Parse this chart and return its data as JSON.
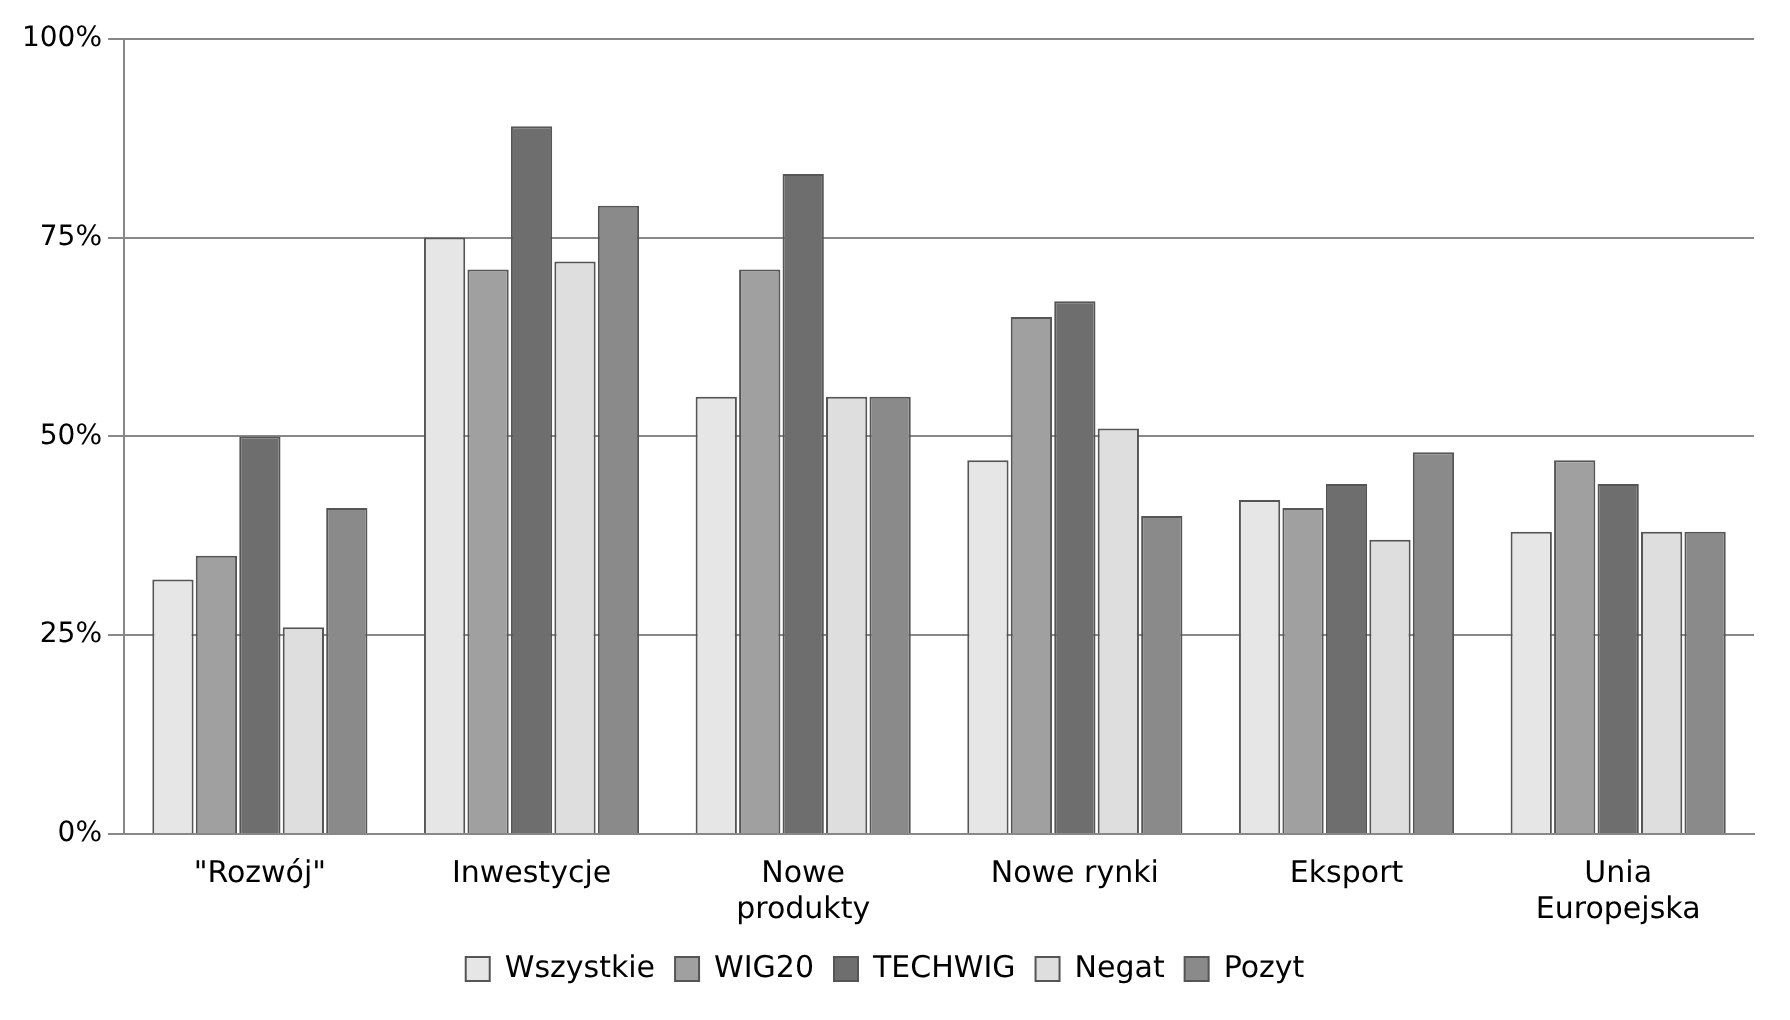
{
  "chart_data": {
    "type": "bar",
    "categories": [
      "\"Rozwój\"",
      "Inwestycje",
      "Nowe produkty",
      "Nowe rynki",
      "Eksport",
      "Unia Europejska"
    ],
    "series": [
      {
        "name": "Wszystkie",
        "color": "#e6e6e6",
        "values": [
          32,
          75,
          55,
          47,
          42,
          38
        ]
      },
      {
        "name": "WIG20",
        "color": "#a0a0a0",
        "values": [
          35,
          71,
          71,
          65,
          41,
          47
        ]
      },
      {
        "name": "TECHWIG",
        "color": "#6e6e6e",
        "values": [
          50,
          89,
          83,
          67,
          44,
          44
        ]
      },
      {
        "name": "Negat",
        "color": "#dedede",
        "values": [
          26,
          72,
          55,
          51,
          37,
          38
        ]
      },
      {
        "name": "Pozyt",
        "color": "#8a8a8a",
        "values": [
          41,
          79,
          55,
          40,
          48,
          38
        ]
      }
    ],
    "ylim": [
      0,
      100
    ],
    "yticks": [
      {
        "value": 0,
        "label": "0%"
      },
      {
        "value": 25,
        "label": "25%"
      },
      {
        "value": 50,
        "label": "50%"
      },
      {
        "value": 75,
        "label": "75%"
      },
      {
        "value": 100,
        "label": "100%"
      }
    ],
    "grid": "y",
    "legend": "bottom"
  }
}
